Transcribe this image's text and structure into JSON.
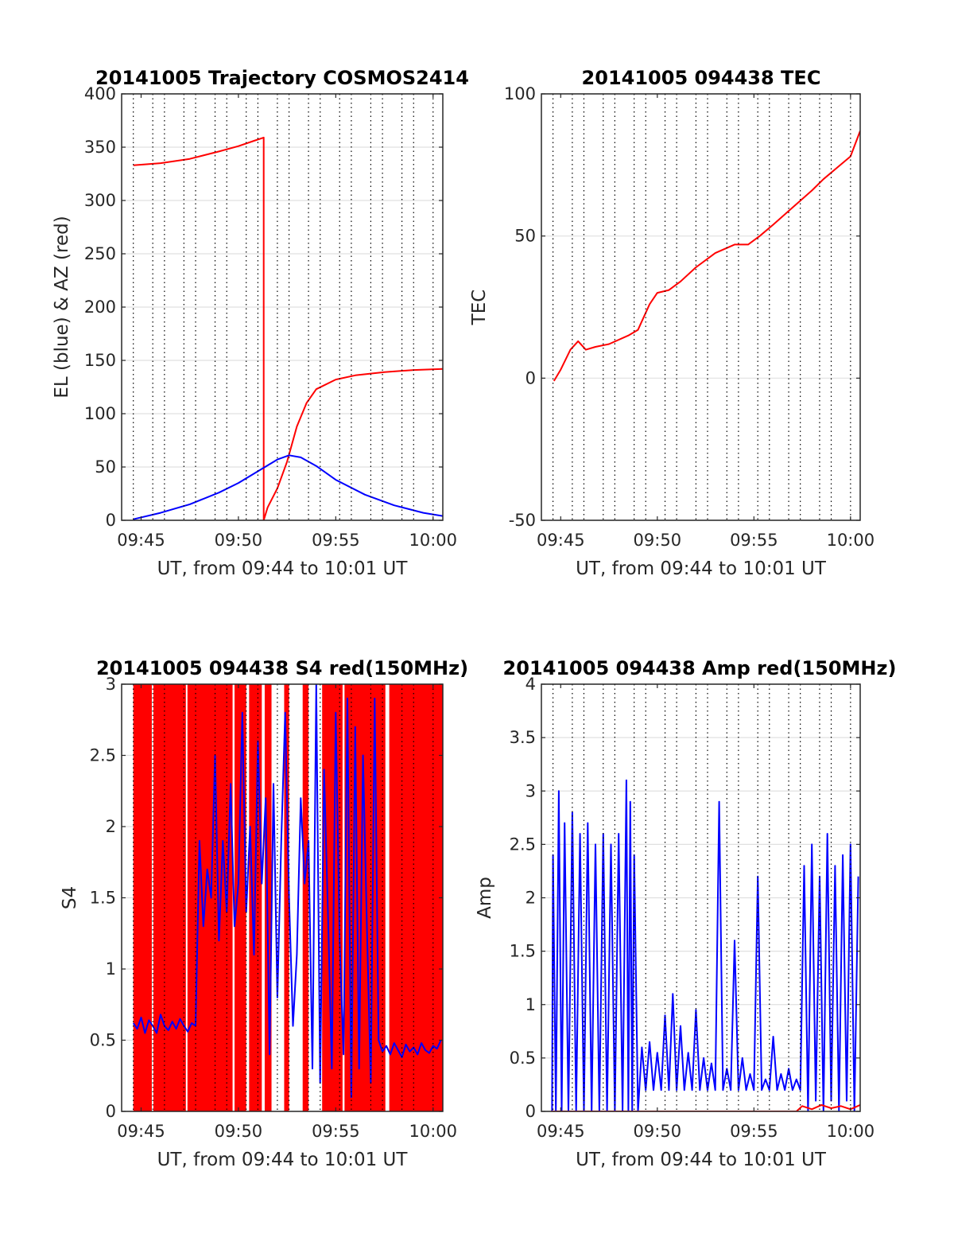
{
  "chart_data": [
    {
      "id": "traj",
      "type": "line",
      "title": "20141005 Trajectory COSMOS2414",
      "xlabel": "UT, from 09:44 to 10:01 UT",
      "ylabel": "EL (blue) & AZ (red)",
      "xlim": [
        0,
        16.5
      ],
      "ylim": [
        0,
        400
      ],
      "x_tick_values": [
        1,
        6,
        11,
        16
      ],
      "x_tick_labels": [
        "09:45",
        "09:50",
        "09:55",
        "10:00"
      ],
      "y_tick_values": [
        0,
        50,
        100,
        150,
        200,
        250,
        300,
        350,
        400
      ],
      "y_tick_labels": [
        "0",
        "50",
        "100",
        "150",
        "200",
        "250",
        "300",
        "350",
        "400"
      ],
      "minor_x_grid": [
        0.6,
        1.6,
        2.2,
        3.2,
        3.8,
        4.8,
        5.4,
        6.4,
        7.0,
        8.0,
        8.6,
        9.6,
        10.2,
        11.2,
        11.8,
        12.8,
        13.4,
        14.4,
        15.0,
        16.0
      ],
      "series": [
        {
          "name": "AZ",
          "color": "#ff0000",
          "x": [
            0.6,
            2.0,
            3.5,
            5.0,
            6.0,
            6.8,
            7.3,
            7.3,
            7.5,
            8.0,
            8.5,
            9.0,
            9.5,
            10.0,
            11.0,
            12.0,
            13.5,
            15.0,
            16.5
          ],
          "y": [
            333,
            335,
            339,
            346,
            351,
            356,
            359,
            0,
            12,
            30,
            55,
            88,
            110,
            123,
            132,
            136,
            139,
            141,
            142
          ]
        },
        {
          "name": "EL",
          "color": "#0000ff",
          "x": [
            0.6,
            2.0,
            3.5,
            5.0,
            6.0,
            7.0,
            8.0,
            8.6,
            9.2,
            10.0,
            11.0,
            12.5,
            14.0,
            15.5,
            16.5
          ],
          "y": [
            1,
            7,
            15,
            26,
            35,
            46,
            57,
            61,
            59,
            51,
            38,
            24,
            14,
            7,
            4
          ]
        }
      ]
    },
    {
      "id": "tec",
      "type": "line",
      "title": "20141005 094438 TEC",
      "xlabel": "UT, from 09:44 to 10:01 UT",
      "ylabel": "TEC",
      "xlim": [
        0,
        16.5
      ],
      "ylim": [
        -50,
        100
      ],
      "x_tick_values": [
        1,
        6,
        11,
        16
      ],
      "x_tick_labels": [
        "09:45",
        "09:50",
        "09:55",
        "10:00"
      ],
      "y_tick_values": [
        -50,
        0,
        50,
        100
      ],
      "y_tick_labels": [
        "-50",
        "0",
        "50",
        "100"
      ],
      "minor_x_grid": [
        0.6,
        1.6,
        2.2,
        3.2,
        3.8,
        4.8,
        5.4,
        6.4,
        7.0,
        8.0,
        8.6,
        9.6,
        10.2,
        11.2,
        11.8,
        12.8,
        13.4,
        14.4,
        15.0,
        16.0
      ],
      "series": [
        {
          "name": "TEC",
          "color": "#ff0000",
          "x": [
            0.65,
            1.0,
            1.5,
            1.9,
            2.3,
            2.8,
            3.5,
            4.5,
            5.0,
            5.6,
            6.0,
            6.6,
            7.2,
            8.0,
            9.0,
            10.0,
            10.7,
            11.3,
            12.0,
            13.0,
            14.0,
            14.6,
            15.3,
            16.0,
            16.5
          ],
          "y": [
            -1,
            3,
            10,
            13,
            10,
            11,
            12,
            15,
            17,
            26,
            30,
            31,
            34,
            39,
            44,
            47,
            47,
            50,
            54,
            60,
            66,
            70,
            74,
            78,
            87
          ]
        }
      ]
    },
    {
      "id": "s4",
      "type": "line",
      "title": "20141005 094438 S4 red(150MHz)",
      "xlabel": "UT, from 09:44 to 10:01 UT",
      "ylabel": "S4",
      "xlim": [
        0,
        16.5
      ],
      "ylim": [
        0,
        3
      ],
      "x_tick_values": [
        1,
        6,
        11,
        16
      ],
      "x_tick_labels": [
        "09:45",
        "09:50",
        "09:55",
        "10:00"
      ],
      "y_tick_values": [
        0,
        0.5,
        1,
        1.5,
        2,
        2.5,
        3
      ],
      "y_tick_labels": [
        "0",
        "0.5",
        "1",
        "1.5",
        "2",
        "2.5",
        "3"
      ],
      "minor_x_grid": [
        0.6,
        1.6,
        2.2,
        3.2,
        3.8,
        4.8,
        5.4,
        6.4,
        7.0,
        8.0,
        8.6,
        9.6,
        10.2,
        11.2,
        11.8,
        12.8,
        13.4,
        14.4,
        15.0,
        16.0
      ],
      "red_fill": {
        "color": "#ff0000",
        "x_range": [
          0.6,
          16.5
        ],
        "white_gaps": [
          [
            1.55,
            1.6
          ],
          [
            3.3,
            3.35
          ],
          [
            5.7,
            5.8
          ],
          [
            6.4,
            6.55
          ],
          [
            7.2,
            7.35
          ],
          [
            7.7,
            8.35
          ],
          [
            8.6,
            9.3
          ],
          [
            9.6,
            10.3
          ],
          [
            11.35,
            11.45
          ],
          [
            13.55,
            13.75
          ]
        ]
      },
      "series": [
        {
          "name": "S4 blue",
          "color": "#0000ff",
          "x": [
            0.6,
            0.8,
            1.0,
            1.2,
            1.4,
            1.6,
            1.8,
            2.0,
            2.2,
            2.4,
            2.6,
            2.8,
            3.0,
            3.2,
            3.4,
            3.6,
            3.8,
            4.0,
            4.2,
            4.4,
            4.6,
            4.8,
            5.0,
            5.2,
            5.4,
            5.6,
            5.8,
            6.0,
            6.2,
            6.4,
            6.6,
            6.8,
            7.0,
            7.2,
            7.4,
            7.6,
            7.8,
            8.0,
            8.2,
            8.4,
            8.6,
            8.8,
            9.0,
            9.2,
            9.4,
            9.6,
            9.8,
            10.0,
            10.2,
            10.4,
            10.6,
            10.8,
            11.0,
            11.2,
            11.4,
            11.6,
            11.8,
            12.0,
            12.2,
            12.4,
            12.6,
            12.8,
            13.0,
            13.2,
            13.4,
            13.6,
            13.8,
            14.0,
            14.2,
            14.4,
            14.6,
            14.8,
            15.0,
            15.2,
            15.4,
            15.6,
            15.8,
            16.0,
            16.2,
            16.4
          ],
          "y": [
            0.62,
            0.58,
            0.66,
            0.55,
            0.64,
            0.6,
            0.55,
            0.68,
            0.6,
            0.57,
            0.63,
            0.58,
            0.65,
            0.6,
            0.56,
            0.62,
            0.6,
            1.9,
            1.3,
            1.7,
            1.5,
            2.5,
            1.2,
            1.9,
            1.4,
            2.3,
            1.3,
            1.6,
            2.8,
            1.4,
            2.0,
            1.1,
            2.6,
            1.6,
            2.2,
            0.4,
            2.3,
            0.8,
            1.9,
            2.8,
            1.5,
            0.6,
            1.1,
            2.2,
            1.6,
            1.9,
            0.3,
            3.0,
            0.2,
            2.4,
            1.4,
            0.3,
            2.8,
            1.2,
            0.4,
            2.9,
            0.1,
            2.7,
            0.3,
            2.5,
            1.3,
            0.2,
            2.9,
            0.5,
            0.42,
            0.46,
            0.4,
            0.48,
            0.43,
            0.38,
            0.47,
            0.42,
            0.45,
            0.4,
            0.48,
            0.43,
            0.41,
            0.46,
            0.44,
            0.5
          ]
        }
      ]
    },
    {
      "id": "amp",
      "type": "line",
      "title": "20141005 094438 Amp red(150MHz)",
      "xlabel": "UT, from 09:44 to 10:01 UT",
      "ylabel": "Amp",
      "xlim": [
        0,
        16.5
      ],
      "ylim": [
        0,
        4
      ],
      "x_tick_values": [
        1,
        6,
        11,
        16
      ],
      "x_tick_labels": [
        "09:45",
        "09:50",
        "09:55",
        "10:00"
      ],
      "y_tick_values": [
        0,
        0.5,
        1,
        1.5,
        2,
        2.5,
        3,
        3.5,
        4
      ],
      "y_tick_labels": [
        "0",
        "0.5",
        "1",
        "1.5",
        "2",
        "2.5",
        "3",
        "3.5",
        "4"
      ],
      "minor_x_grid": [
        0.6,
        1.6,
        2.2,
        3.2,
        3.8,
        4.8,
        5.4,
        6.4,
        7.0,
        8.0,
        8.6,
        9.6,
        10.2,
        11.2,
        11.8,
        12.8,
        13.4,
        14.4,
        15.0,
        16.0
      ],
      "series": [
        {
          "name": "Amp blue",
          "color": "#0000ff",
          "x": [
            0.55,
            0.6,
            0.75,
            0.9,
            1.05,
            1.2,
            1.4,
            1.6,
            1.8,
            2.0,
            2.2,
            2.4,
            2.6,
            2.8,
            3.0,
            3.2,
            3.4,
            3.6,
            3.8,
            4.0,
            4.2,
            4.4,
            4.5,
            4.6,
            4.7,
            4.8,
            5.0,
            5.2,
            5.4,
            5.6,
            5.8,
            6.0,
            6.2,
            6.4,
            6.6,
            6.8,
            7.0,
            7.2,
            7.4,
            7.6,
            7.8,
            8.0,
            8.2,
            8.4,
            8.6,
            8.8,
            9.0,
            9.2,
            9.4,
            9.6,
            9.8,
            10.0,
            10.2,
            10.4,
            10.6,
            10.8,
            11.0,
            11.2,
            11.4,
            11.6,
            11.8,
            12.0,
            12.2,
            12.4,
            12.6,
            12.8,
            13.0,
            13.2,
            13.4,
            13.6,
            13.8,
            14.0,
            14.2,
            14.4,
            14.6,
            14.8,
            15.0,
            15.2,
            15.4,
            15.6,
            15.8,
            16.0,
            16.2,
            16.4
          ],
          "y": [
            0,
            2.4,
            0,
            3.0,
            0,
            2.7,
            0,
            2.8,
            0,
            2.6,
            0,
            2.7,
            0,
            2.5,
            0,
            2.6,
            0,
            2.5,
            0,
            2.6,
            0,
            3.1,
            0,
            2.9,
            0,
            2.4,
            0,
            0.6,
            0.2,
            0.65,
            0.2,
            0.55,
            0.2,
            0.9,
            0.2,
            1.1,
            0.2,
            0.8,
            0.2,
            0.55,
            0.2,
            0.95,
            0.2,
            0.5,
            0.2,
            0.45,
            0.2,
            2.9,
            0.2,
            0.4,
            0.2,
            1.6,
            0.2,
            0.5,
            0.2,
            0.35,
            0.2,
            2.2,
            0.2,
            0.3,
            0.2,
            0.7,
            0.2,
            0.35,
            0.2,
            0.4,
            0.2,
            0.3,
            0.2,
            2.3,
            0.0,
            2.5,
            0.1,
            2.2,
            0.0,
            2.6,
            0.1,
            2.3,
            0.0,
            2.4,
            0.1,
            2.5,
            0.0,
            2.2
          ]
        },
        {
          "name": "Amp red",
          "color": "#ff0000",
          "x": [
            0.5,
            13.2,
            13.5,
            14.0,
            14.5,
            15.0,
            15.5,
            16.0,
            16.5
          ],
          "y": [
            0,
            0,
            0.05,
            0.02,
            0.06,
            0.03,
            0.05,
            0.02,
            0.06
          ]
        }
      ]
    }
  ]
}
